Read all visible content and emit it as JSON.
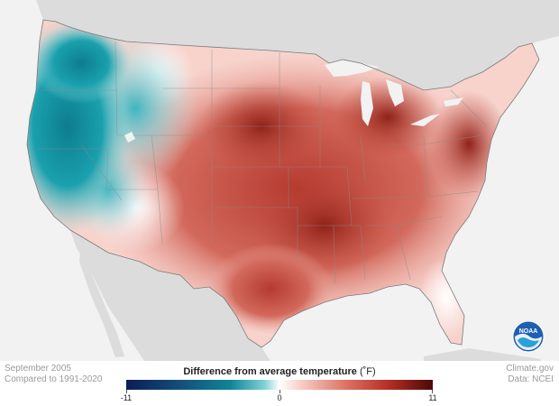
{
  "map": {
    "region": "Contiguous United States",
    "variable": "Difference from average temperature",
    "unit": "°F",
    "colors": {
      "land_outside": "#dcdcdc",
      "water": "#f2f2f2",
      "cold": "#0e8596",
      "neutral": "#ffffff",
      "warm": "#b22d23"
    }
  },
  "footer": {
    "date": "September 2005",
    "baseline": "Compared to 1991-2020",
    "brand": "Climate.gov",
    "data_source": "Data: NCEI"
  },
  "legend": {
    "title": "Difference from average temperature",
    "unit": "(˚F)",
    "min": "-11",
    "mid": "0",
    "max": "11",
    "min_value": -11,
    "max_value": 11
  },
  "logo": {
    "text": "NOAA",
    "icon": "noaa-logo-icon"
  }
}
